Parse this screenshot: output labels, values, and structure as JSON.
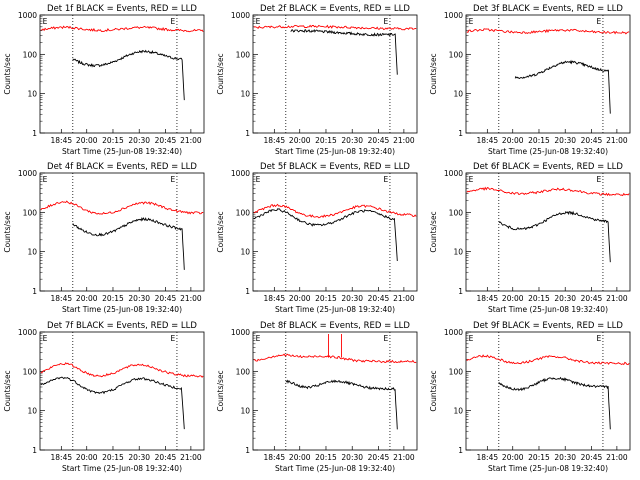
{
  "chart_data": [
    {
      "type": "line",
      "title": "Det 1f BLACK = Events, RED = LLD",
      "ylabel": "Counts/sec",
      "xlabel": "Start Time (25-Jun-08 19:32:40)",
      "x_ticks": [
        "18:45",
        "20:00",
        "20:15",
        "20:30",
        "20:45",
        "21:00"
      ],
      "y_ticks": [
        "1",
        "10",
        "100",
        "1000"
      ],
      "yscale": "log",
      "ylim": [
        1,
        1000
      ],
      "markers": [
        "E",
        "E"
      ],
      "series": [
        {
          "color": "#000000",
          "shape": "black1"
        },
        {
          "color": "#ff0000",
          "shape": "red1"
        }
      ]
    },
    {
      "type": "line",
      "title": "Det 2f BLACK = Events, RED = LLD",
      "ylabel": "Counts/sec",
      "xlabel": "Start Time (25-Jun-08 19:32:40)",
      "x_ticks": [
        "18:45",
        "20:00",
        "20:15",
        "20:30",
        "20:45",
        "21:00"
      ],
      "y_ticks": [
        "1",
        "10",
        "100",
        "1000"
      ],
      "yscale": "log",
      "ylim": [
        1,
        1000
      ],
      "markers": [
        "E",
        "E"
      ],
      "series": [
        {
          "color": "#000000",
          "shape": "black2"
        },
        {
          "color": "#ff0000",
          "shape": "red2"
        }
      ]
    },
    {
      "type": "line",
      "title": "Det 3f BLACK = Events, RED = LLD",
      "ylabel": "Counts/sec",
      "xlabel": "Start Time (25-Jun-08 19:32:40)",
      "x_ticks": [
        "18:45",
        "20:00",
        "20:15",
        "20:30",
        "20:45",
        "21:00"
      ],
      "y_ticks": [
        "1",
        "10",
        "100",
        "1000"
      ],
      "yscale": "log",
      "ylim": [
        1,
        1000
      ],
      "markers": [
        "E",
        "E"
      ],
      "series": [
        {
          "color": "#000000",
          "shape": "black3"
        },
        {
          "color": "#ff0000",
          "shape": "red3"
        }
      ]
    },
    {
      "type": "line",
      "title": "Det 4f BLACK = Events, RED = LLD",
      "ylabel": "Counts/sec",
      "xlabel": "Start Time (25-Jun-08 19:32:40)",
      "x_ticks": [
        "18:45",
        "20:00",
        "20:15",
        "20:30",
        "20:45",
        "21:00"
      ],
      "y_ticks": [
        "1",
        "10",
        "100",
        "1000"
      ],
      "yscale": "log",
      "ylim": [
        1,
        1000
      ],
      "markers": [
        "E",
        "E"
      ],
      "series": [
        {
          "color": "#000000",
          "shape": "black4"
        },
        {
          "color": "#ff0000",
          "shape": "red4"
        }
      ]
    },
    {
      "type": "line",
      "title": "Det 5f BLACK = Events, RED = LLD",
      "ylabel": "Counts/sec",
      "xlabel": "Start Time (25-Jun-08 19:32:40)",
      "x_ticks": [
        "18:45",
        "20:00",
        "20:15",
        "20:30",
        "20:45",
        "21:00"
      ],
      "y_ticks": [
        "1",
        "10",
        "100",
        "1000"
      ],
      "yscale": "log",
      "ylim": [
        1,
        1000
      ],
      "markers": [
        "E",
        "E"
      ],
      "series": [
        {
          "color": "#000000",
          "shape": "black5"
        },
        {
          "color": "#ff0000",
          "shape": "red5"
        }
      ]
    },
    {
      "type": "line",
      "title": "Det 6f BLACK = Events, RED = LLD",
      "ylabel": "Counts/sec",
      "xlabel": "Start Time (25-Jun-08 19:32:40)",
      "x_ticks": [
        "18:45",
        "20:00",
        "20:15",
        "20:30",
        "20:45",
        "21:00"
      ],
      "y_ticks": [
        "1",
        "10",
        "100",
        "1000"
      ],
      "yscale": "log",
      "ylim": [
        1,
        1000
      ],
      "markers": [
        "E",
        "E"
      ],
      "series": [
        {
          "color": "#000000",
          "shape": "black6"
        },
        {
          "color": "#ff0000",
          "shape": "red6"
        }
      ]
    },
    {
      "type": "line",
      "title": "Det 7f BLACK = Events, RED = LLD",
      "ylabel": "Counts/sec",
      "xlabel": "Start Time (25-Jun-08 19:32:40)",
      "x_ticks": [
        "18:45",
        "20:00",
        "20:15",
        "20:30",
        "20:45",
        "21:00"
      ],
      "y_ticks": [
        "1",
        "10",
        "100",
        "1000"
      ],
      "yscale": "log",
      "ylim": [
        1,
        1000
      ],
      "markers": [
        "E",
        "E"
      ],
      "series": [
        {
          "color": "#000000",
          "shape": "black7"
        },
        {
          "color": "#ff0000",
          "shape": "red7"
        }
      ]
    },
    {
      "type": "line",
      "title": "Det 8f BLACK = Events, RED = LLD",
      "ylabel": "Counts/sec",
      "xlabel": "Start Time (25-Jun-08 19:32:40)",
      "x_ticks": [
        "18:45",
        "20:00",
        "20:15",
        "20:30",
        "20:45",
        "21:00"
      ],
      "y_ticks": [
        "1",
        "10",
        "100",
        "1000"
      ],
      "yscale": "log",
      "ylim": [
        1,
        1000
      ],
      "markers": [
        "E",
        "E"
      ],
      "series": [
        {
          "color": "#000000",
          "shape": "black8"
        },
        {
          "color": "#ff0000",
          "shape": "red8"
        }
      ]
    },
    {
      "type": "line",
      "title": "Det 9f BLACK = Events, RED = LLD",
      "ylabel": "Counts/sec",
      "xlabel": "Start Time (25-Jun-08 19:32:40)",
      "x_ticks": [
        "18:45",
        "20:00",
        "20:15",
        "20:30",
        "20:45",
        "21:00"
      ],
      "y_ticks": [
        "1",
        "10",
        "100",
        "1000"
      ],
      "yscale": "log",
      "ylim": [
        1,
        1000
      ],
      "markers": [
        "E",
        "E"
      ],
      "series": [
        {
          "color": "#000000",
          "shape": "black9"
        },
        {
          "color": "#ff0000",
          "shape": "red9"
        }
      ]
    }
  ]
}
